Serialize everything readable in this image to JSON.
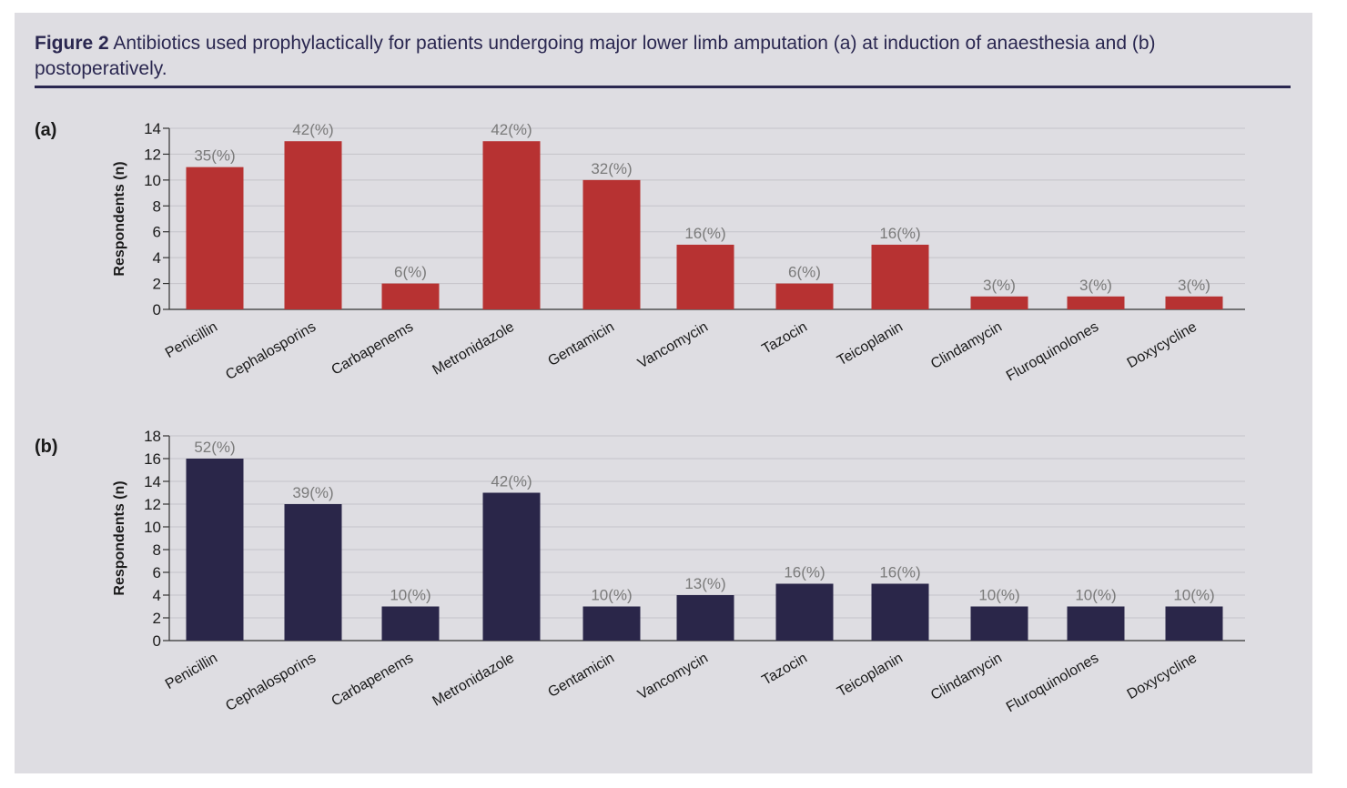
{
  "figure": {
    "label": "Figure 2",
    "caption": "Antibiotics used prophylactically for patients undergoing major lower limb amputation (a) at induction of anaesthesia and (b) postoperatively."
  },
  "colors": {
    "background": "#dedde2",
    "title": "#2a2750",
    "series_a": "#b73232",
    "series_b": "#2a2649",
    "gridline": "#c4c3c9",
    "value_label": "#7a7a7a"
  },
  "chart_data": [
    {
      "type": "bar",
      "panel": "(a)",
      "ylabel": "Respondents (n)",
      "xlabel": "",
      "ylim": [
        0,
        14
      ],
      "yticks": [
        0,
        2,
        4,
        6,
        8,
        10,
        12,
        14
      ],
      "grid": true,
      "categories": [
        "Penicillin",
        "Cephalosporins",
        "Carbapenems",
        "Metronidazole",
        "Gentamicin",
        "Vancomycin",
        "Tazocin",
        "Teicoplanin",
        "Clindamycin",
        "Fluroquinolones",
        "Doxycycline"
      ],
      "values": [
        11,
        13,
        2,
        13,
        10,
        5,
        2,
        5,
        1,
        1,
        1
      ],
      "data_labels": [
        "35(%)",
        "42(%)",
        "6(%)",
        "42(%)",
        "32(%)",
        "16(%)",
        "6(%)",
        "16(%)",
        "3(%)",
        "3(%)",
        "3(%)"
      ]
    },
    {
      "type": "bar",
      "panel": "(b)",
      "ylabel": "Respondents (n)",
      "xlabel": "",
      "ylim": [
        0,
        18
      ],
      "yticks": [
        0,
        2,
        4,
        6,
        8,
        10,
        12,
        14,
        16,
        18
      ],
      "grid": true,
      "categories": [
        "Penicillin",
        "Cephalosporins",
        "Carbapenems",
        "Metronidazole",
        "Gentamicin",
        "Vancomycin",
        "Tazocin",
        "Teicoplanin",
        "Clindamycin",
        "Fluroquinolones",
        "Doxycycline"
      ],
      "values": [
        16,
        12,
        3,
        13,
        3,
        4,
        5,
        5,
        3,
        3,
        3
      ],
      "data_labels": [
        "52(%)",
        "39(%)",
        "10(%)",
        "42(%)",
        "10(%)",
        "13(%)",
        "16(%)",
        "16(%)",
        "10(%)",
        "10(%)",
        "10(%)"
      ]
    }
  ]
}
